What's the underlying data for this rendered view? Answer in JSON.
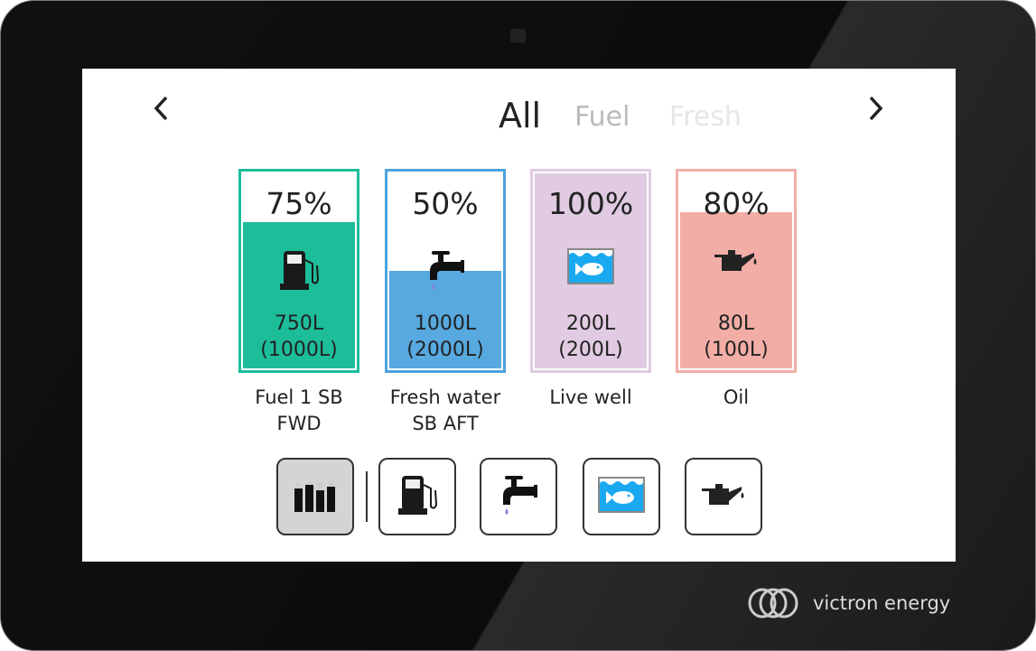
{
  "nav": {
    "prev_icon": "chevron-left",
    "next_icon": "chevron-right",
    "prev": "‹",
    "next": "›"
  },
  "tabs": [
    {
      "label": "All",
      "active": true
    },
    {
      "label": "Fuel"
    },
    {
      "label": "Fresh"
    }
  ],
  "tanks": [
    {
      "name": "Fuel 1 SB FWD",
      "percent": "75%",
      "level": 0.75,
      "volume": "750L",
      "capacity": "(1000L)",
      "icon": "fuel-pump",
      "border": "#1dbd9a",
      "fill": "#1dbd9a"
    },
    {
      "name": "Fresh water SB AFT",
      "percent": "50%",
      "level": 0.5,
      "volume": "1000L",
      "capacity": "(2000L)",
      "icon": "water-tap",
      "border": "#4ca3de",
      "fill": "#57a9e0"
    },
    {
      "name": "Live well",
      "percent": "100%",
      "level": 1.0,
      "volume": "200L",
      "capacity": "(200L)",
      "icon": "fish-tank",
      "border": "#e0cbe2",
      "fill": "#e0cbe2"
    },
    {
      "name": "Oil",
      "percent": "80%",
      "level": 0.8,
      "volume": "80L",
      "capacity": "(100L)",
      "icon": "oil-can",
      "border": "#f2aea6",
      "fill": "#f2aea6"
    }
  ],
  "filters": [
    {
      "icon": "all-tanks",
      "selected": true
    },
    {
      "icon": "fuel-pump"
    },
    {
      "icon": "water-tap"
    },
    {
      "icon": "fish-tank"
    },
    {
      "icon": "oil-can"
    }
  ],
  "brand": {
    "logo": "victron energy"
  }
}
